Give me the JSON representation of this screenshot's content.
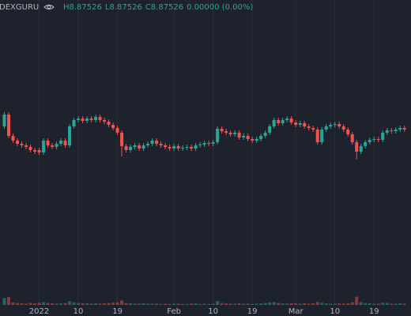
{
  "header": {
    "symbol": "DEXGURU",
    "ohlc": [
      "H8.87526",
      "L8.87526",
      "C8.87526"
    ],
    "change": "0.00000 (0.00%)"
  },
  "chart_data": {
    "type": "candlestick",
    "up_color": "#26a69a",
    "down_color": "#ef5350",
    "grid": true,
    "xlim": [
      -1,
      93.5
    ],
    "ylim": [
      6.64,
      10.52
    ],
    "vlim": [
      0,
      100
    ],
    "xticks": [
      {
        "value": 8,
        "label": "2022"
      },
      {
        "value": 17,
        "label": "10"
      },
      {
        "value": 26,
        "label": "19"
      },
      {
        "value": 39,
        "label": "Feb"
      },
      {
        "value": 48,
        "label": "10"
      },
      {
        "value": 57,
        "label": "19"
      },
      {
        "value": 67,
        "label": "Mar"
      },
      {
        "value": 76,
        "label": "10"
      },
      {
        "value": 85,
        "label": "19"
      }
    ],
    "candles": [
      [
        8.92,
        9.1,
        8.89,
        9.07
      ],
      [
        9.07,
        9.1,
        8.77,
        8.8
      ],
      [
        8.8,
        8.83,
        8.71,
        8.74
      ],
      [
        8.74,
        8.77,
        8.67,
        8.7
      ],
      [
        8.7,
        8.73,
        8.65,
        8.68
      ],
      [
        8.68,
        8.71,
        8.63,
        8.66
      ],
      [
        8.66,
        8.69,
        8.59,
        8.62
      ],
      [
        8.62,
        8.65,
        8.57,
        8.6
      ],
      [
        8.62,
        8.65,
        8.56,
        8.59
      ],
      [
        8.59,
        8.77,
        8.56,
        8.74
      ],
      [
        8.74,
        8.77,
        8.65,
        8.68
      ],
      [
        8.68,
        8.71,
        8.63,
        8.66
      ],
      [
        8.66,
        8.73,
        8.63,
        8.7
      ],
      [
        8.7,
        8.77,
        8.67,
        8.74
      ],
      [
        8.74,
        8.77,
        8.65,
        8.68
      ],
      [
        8.68,
        8.95,
        8.65,
        8.92
      ],
      [
        8.92,
        9.03,
        8.89,
        9.0
      ],
      [
        9.0,
        9.05,
        8.97,
        9.02
      ],
      [
        9.02,
        9.05,
        8.96,
        8.99
      ],
      [
        8.99,
        9.05,
        8.96,
        9.02
      ],
      [
        9.02,
        9.05,
        8.97,
        9.0
      ],
      [
        9.0,
        9.07,
        8.97,
        9.04
      ],
      [
        9.04,
        9.07,
        8.97,
        9.0
      ],
      [
        9.0,
        9.03,
        8.95,
        8.98
      ],
      [
        8.98,
        9.01,
        8.91,
        8.94
      ],
      [
        8.94,
        8.97,
        8.87,
        8.9
      ],
      [
        8.9,
        8.93,
        8.81,
        8.84
      ],
      [
        8.84,
        8.87,
        8.54,
        8.67
      ],
      [
        8.67,
        8.7,
        8.59,
        8.62
      ],
      [
        8.62,
        8.69,
        8.59,
        8.66
      ],
      [
        8.66,
        8.71,
        8.63,
        8.68
      ],
      [
        8.68,
        8.71,
        8.61,
        8.64
      ],
      [
        8.64,
        8.71,
        8.61,
        8.68
      ],
      [
        8.68,
        8.73,
        8.65,
        8.7
      ],
      [
        8.7,
        8.77,
        8.67,
        8.74
      ],
      [
        8.74,
        8.77,
        8.67,
        8.7
      ],
      [
        8.7,
        8.73,
        8.65,
        8.68
      ],
      [
        8.68,
        8.71,
        8.63,
        8.66
      ],
      [
        8.66,
        8.69,
        8.61,
        8.64
      ],
      [
        8.64,
        8.7,
        8.61,
        8.67
      ],
      [
        8.67,
        8.7,
        8.61,
        8.64
      ],
      [
        8.64,
        8.68,
        8.61,
        8.65
      ],
      [
        8.65,
        8.69,
        8.62,
        8.66
      ],
      [
        8.66,
        8.69,
        8.61,
        8.64
      ],
      [
        8.64,
        8.71,
        8.61,
        8.68
      ],
      [
        8.68,
        8.72,
        8.65,
        8.69
      ],
      [
        8.69,
        8.74,
        8.66,
        8.71
      ],
      [
        8.71,
        8.74,
        8.67,
        8.7
      ],
      [
        8.7,
        8.75,
        8.67,
        8.72
      ],
      [
        8.72,
        8.92,
        8.69,
        8.89
      ],
      [
        8.89,
        8.92,
        8.83,
        8.86
      ],
      [
        8.86,
        8.89,
        8.81,
        8.84
      ],
      [
        8.84,
        8.87,
        8.79,
        8.82
      ],
      [
        8.82,
        8.87,
        8.79,
        8.84
      ],
      [
        8.84,
        8.87,
        8.75,
        8.78
      ],
      [
        8.78,
        8.83,
        8.75,
        8.8
      ],
      [
        8.8,
        8.83,
        8.73,
        8.76
      ],
      [
        8.76,
        8.79,
        8.71,
        8.74
      ],
      [
        8.74,
        8.79,
        8.71,
        8.76
      ],
      [
        8.76,
        8.83,
        8.73,
        8.8
      ],
      [
        8.8,
        8.87,
        8.77,
        8.84
      ],
      [
        8.84,
        8.95,
        8.81,
        8.92
      ],
      [
        8.92,
        9.03,
        8.89,
        9.0
      ],
      [
        9.0,
        9.03,
        8.93,
        8.96
      ],
      [
        8.96,
        9.03,
        8.93,
        9.0
      ],
      [
        9.0,
        9.05,
        8.97,
        9.02
      ],
      [
        9.02,
        9.05,
        8.94,
        8.97
      ],
      [
        8.97,
        9.0,
        8.91,
        8.94
      ],
      [
        8.94,
        8.99,
        8.91,
        8.96
      ],
      [
        8.96,
        8.99,
        8.89,
        8.92
      ],
      [
        8.92,
        8.95,
        8.87,
        8.9
      ],
      [
        8.9,
        8.93,
        8.85,
        8.88
      ],
      [
        8.88,
        8.91,
        8.69,
        8.72
      ],
      [
        8.72,
        8.91,
        8.69,
        8.88
      ],
      [
        8.88,
        8.95,
        8.85,
        8.92
      ],
      [
        8.92,
        8.97,
        8.89,
        8.94
      ],
      [
        8.94,
        8.98,
        8.91,
        8.95
      ],
      [
        8.95,
        8.98,
        8.89,
        8.92
      ],
      [
        8.92,
        8.95,
        8.85,
        8.88
      ],
      [
        8.88,
        8.91,
        8.79,
        8.82
      ],
      [
        8.82,
        8.85,
        8.69,
        8.72
      ],
      [
        8.72,
        8.75,
        8.5,
        8.6
      ],
      [
        8.6,
        8.7,
        8.57,
        8.67
      ],
      [
        8.67,
        8.75,
        8.64,
        8.72
      ],
      [
        8.72,
        8.78,
        8.69,
        8.75
      ],
      [
        8.75,
        8.79,
        8.72,
        8.76
      ],
      [
        8.76,
        8.79,
        8.72,
        8.75
      ],
      [
        8.75,
        8.87,
        8.72,
        8.84
      ],
      [
        8.84,
        8.9,
        8.81,
        8.87
      ],
      [
        8.87,
        8.9,
        8.83,
        8.86
      ],
      [
        8.86,
        8.91,
        8.83,
        8.88
      ],
      [
        8.88,
        8.93,
        8.85,
        8.9
      ],
      [
        8.9,
        8.93,
        8.85,
        8.88
      ]
    ],
    "volumes": [
      22,
      25,
      8,
      6,
      5,
      4,
      6,
      5,
      7,
      9,
      6,
      5,
      4,
      5,
      6,
      12,
      8,
      6,
      5,
      5,
      4,
      5,
      4,
      5,
      6,
      7,
      8,
      14,
      6,
      5,
      4,
      4,
      5,
      4,
      4,
      4,
      3,
      4,
      3,
      4,
      4,
      3,
      3,
      4,
      5,
      3,
      4,
      3,
      4,
      12,
      6,
      5,
      4,
      4,
      5,
      4,
      4,
      3,
      4,
      5,
      6,
      8,
      9,
      6,
      5,
      4,
      5,
      5,
      4,
      5,
      4,
      5,
      9,
      7,
      5,
      4,
      4,
      5,
      4,
      5,
      8,
      26,
      9,
      6,
      5,
      4,
      4,
      7,
      6,
      4,
      4,
      5,
      4
    ]
  }
}
